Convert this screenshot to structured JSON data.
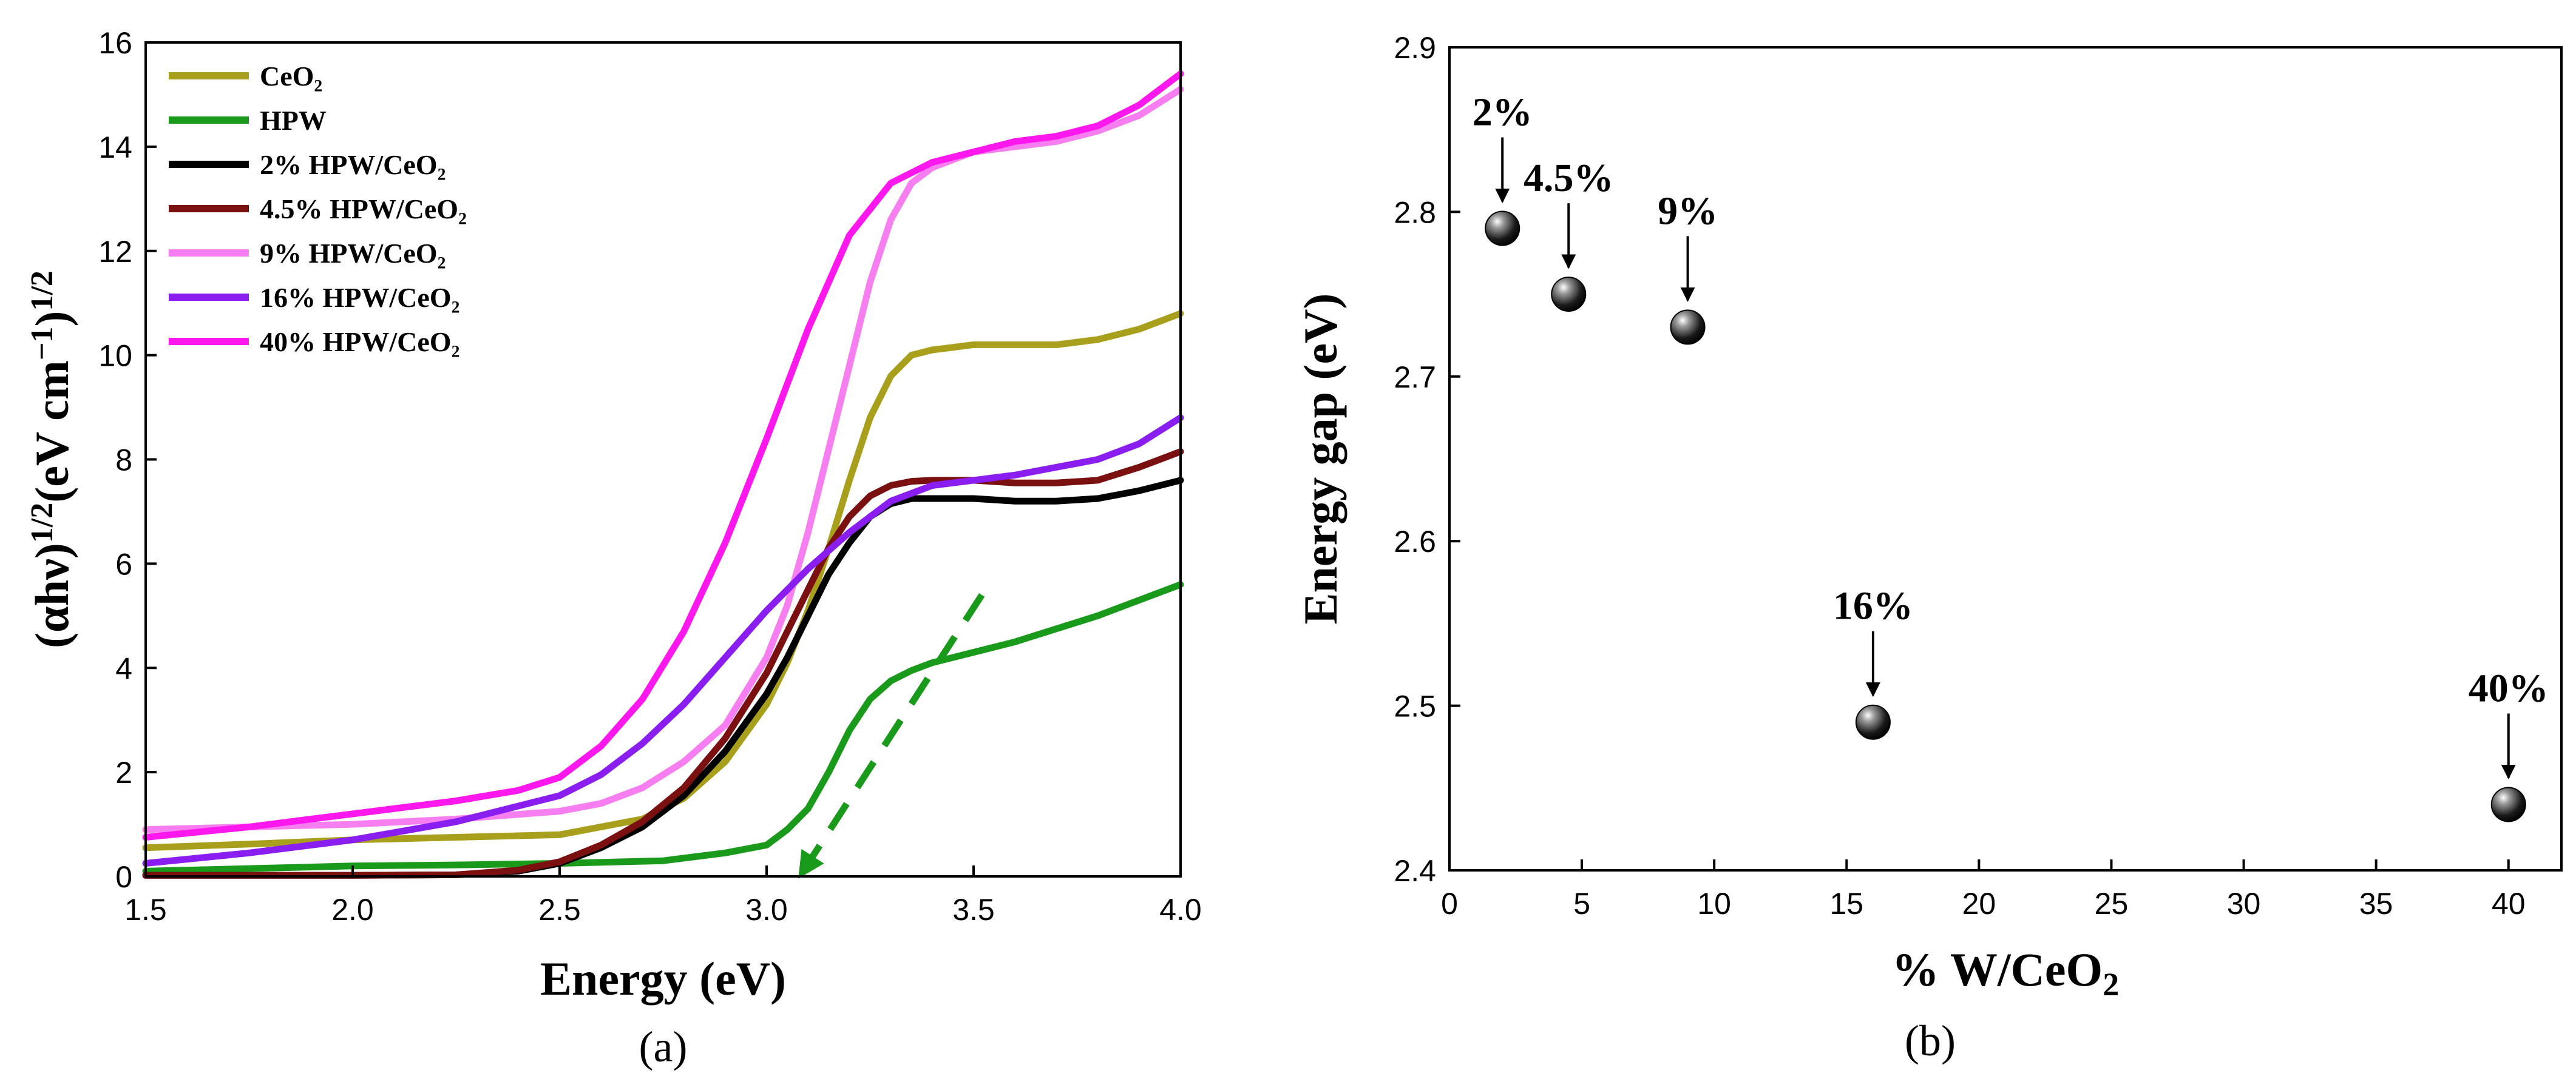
{
  "chart_data": [
    {
      "type": "line",
      "panel_label": "(a)",
      "xlabel": "Energy (eV)",
      "ylabel_parts": [
        "(αhν)",
        "1/2",
        "(eV cm",
        "−1",
        ")",
        "1/2"
      ],
      "xlim": [
        1.5,
        4.0
      ],
      "ylim": [
        0,
        16
      ],
      "xticks": [
        1.5,
        2.0,
        2.5,
        3.0,
        3.5,
        4.0
      ],
      "xtick_labels": [
        "1.5",
        "2.0",
        "2.5",
        "3.0",
        "3.5",
        "4.0"
      ],
      "yticks": [
        0,
        2,
        4,
        6,
        8,
        10,
        12,
        14,
        16
      ],
      "ytick_labels": [
        "0",
        "2",
        "4",
        "6",
        "8",
        "10",
        "12",
        "14",
        "16"
      ],
      "legend_position": "top-left",
      "series": [
        {
          "name": "CeO₂",
          "color": "#a8a01c",
          "x": [
            1.5,
            1.75,
            2.0,
            2.25,
            2.5,
            2.6,
            2.7,
            2.8,
            2.9,
            3.0,
            3.05,
            3.1,
            3.15,
            3.2,
            3.25,
            3.3,
            3.35,
            3.4,
            3.5,
            3.6,
            3.7,
            3.8,
            3.9,
            4.0
          ],
          "y": [
            0.55,
            0.62,
            0.7,
            0.75,
            0.8,
            0.95,
            1.1,
            1.5,
            2.2,
            3.3,
            4.1,
            5.1,
            6.3,
            7.6,
            8.8,
            9.6,
            10.0,
            10.1,
            10.2,
            10.2,
            10.2,
            10.3,
            10.5,
            10.8
          ]
        },
        {
          "name": "HPW",
          "color": "#1a9a1a",
          "x": [
            1.5,
            1.75,
            2.0,
            2.25,
            2.5,
            2.75,
            2.9,
            3.0,
            3.05,
            3.1,
            3.15,
            3.2,
            3.25,
            3.3,
            3.35,
            3.4,
            3.5,
            3.6,
            3.7,
            3.8,
            3.9,
            4.0
          ],
          "y": [
            0.1,
            0.15,
            0.2,
            0.22,
            0.25,
            0.3,
            0.45,
            0.6,
            0.9,
            1.3,
            2.0,
            2.8,
            3.4,
            3.75,
            3.95,
            4.1,
            4.3,
            4.5,
            4.75,
            5.0,
            5.3,
            5.6
          ]
        },
        {
          "name": "2% HPW/CeO₂",
          "color": "#000000",
          "x": [
            1.5,
            1.75,
            2.0,
            2.25,
            2.4,
            2.5,
            2.6,
            2.7,
            2.8,
            2.9,
            3.0,
            3.05,
            3.1,
            3.15,
            3.2,
            3.25,
            3.3,
            3.35,
            3.4,
            3.5,
            3.6,
            3.7,
            3.8,
            3.9,
            4.0
          ],
          "y": [
            0.02,
            0.02,
            0.02,
            0.03,
            0.1,
            0.25,
            0.55,
            0.95,
            1.55,
            2.4,
            3.5,
            4.2,
            5.0,
            5.8,
            6.4,
            6.9,
            7.15,
            7.25,
            7.25,
            7.25,
            7.2,
            7.2,
            7.25,
            7.4,
            7.6
          ]
        },
        {
          "name": "4.5% HPW/CeO₂",
          "color": "#7b1010",
          "x": [
            1.5,
            1.75,
            2.0,
            2.25,
            2.4,
            2.5,
            2.6,
            2.7,
            2.8,
            2.9,
            3.0,
            3.05,
            3.1,
            3.15,
            3.2,
            3.25,
            3.3,
            3.35,
            3.4,
            3.5,
            3.6,
            3.7,
            3.8,
            3.9,
            4.0
          ],
          "y": [
            0.02,
            0.02,
            0.02,
            0.03,
            0.12,
            0.28,
            0.6,
            1.05,
            1.7,
            2.65,
            3.9,
            4.7,
            5.5,
            6.3,
            6.9,
            7.3,
            7.5,
            7.58,
            7.6,
            7.6,
            7.55,
            7.55,
            7.6,
            7.85,
            8.15
          ]
        },
        {
          "name": "9% HPW/CeO₂",
          "color": "#f77ef0",
          "x": [
            1.5,
            1.75,
            2.0,
            2.25,
            2.5,
            2.6,
            2.7,
            2.8,
            2.9,
            3.0,
            3.05,
            3.1,
            3.15,
            3.2,
            3.25,
            3.3,
            3.35,
            3.4,
            3.5,
            3.6,
            3.7,
            3.8,
            3.9,
            4.0
          ],
          "y": [
            0.9,
            0.95,
            1.0,
            1.1,
            1.25,
            1.4,
            1.7,
            2.2,
            2.9,
            4.2,
            5.2,
            6.6,
            8.2,
            9.8,
            11.4,
            12.6,
            13.3,
            13.6,
            13.9,
            14.0,
            14.1,
            14.3,
            14.6,
            15.1
          ]
        },
        {
          "name": "16% HPW/CeO₂",
          "color": "#8a1df0",
          "x": [
            1.5,
            1.75,
            2.0,
            2.25,
            2.5,
            2.6,
            2.7,
            2.8,
            2.9,
            3.0,
            3.1,
            3.2,
            3.3,
            3.4,
            3.5,
            3.6,
            3.7,
            3.8,
            3.9,
            4.0
          ],
          "y": [
            0.25,
            0.45,
            0.7,
            1.05,
            1.55,
            1.95,
            2.55,
            3.3,
            4.2,
            5.1,
            5.9,
            6.6,
            7.2,
            7.5,
            7.6,
            7.7,
            7.85,
            8.0,
            8.3,
            8.8
          ]
        },
        {
          "name": "40% HPW/CeO₂",
          "color": "#ff18ee",
          "x": [
            1.5,
            1.75,
            2.0,
            2.25,
            2.4,
            2.5,
            2.6,
            2.7,
            2.8,
            2.9,
            3.0,
            3.1,
            3.2,
            3.3,
            3.4,
            3.5,
            3.6,
            3.7,
            3.8,
            3.9,
            4.0
          ],
          "y": [
            0.75,
            0.95,
            1.2,
            1.45,
            1.65,
            1.9,
            2.5,
            3.4,
            4.7,
            6.4,
            8.4,
            10.5,
            12.3,
            13.3,
            13.7,
            13.9,
            14.1,
            14.2,
            14.4,
            14.8,
            15.4
          ]
        }
      ],
      "annotation": {
        "type": "dashed-arrow",
        "color": "#1a9a1a",
        "from": [
          3.52,
          5.4
        ],
        "to": [
          3.08,
          0.0
        ]
      }
    },
    {
      "type": "scatter",
      "panel_label": "(b)",
      "xlabel_parts": [
        "% W/CeO",
        "2"
      ],
      "ylabel": "Energy gap (eV)",
      "xlim": [
        0,
        42
      ],
      "ylim": [
        2.4,
        2.9
      ],
      "xticks": [
        0,
        5,
        10,
        15,
        20,
        25,
        30,
        35,
        40
      ],
      "xtick_labels": [
        "0",
        "5",
        "10",
        "15",
        "20",
        "25",
        "30",
        "35",
        "40"
      ],
      "yticks": [
        2.4,
        2.5,
        2.6,
        2.7,
        2.8,
        2.9
      ],
      "ytick_labels": [
        "2.4",
        "2.5",
        "2.6",
        "2.7",
        "2.8",
        "2.9"
      ],
      "x": [
        2,
        4.5,
        9,
        16,
        40
      ],
      "y": [
        2.79,
        2.75,
        2.73,
        2.49,
        2.44
      ],
      "point_labels": [
        "2%",
        "4.5%",
        "9%",
        "16%",
        "40%"
      ]
    }
  ]
}
